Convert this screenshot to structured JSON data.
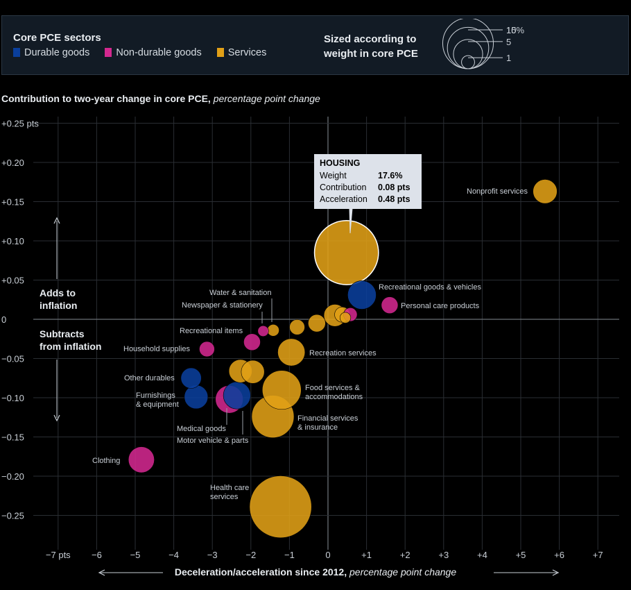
{
  "legend": {
    "title": "Core PCE sectors",
    "items": [
      {
        "label": "Durable goods",
        "color": "#0a3f9c"
      },
      {
        "label": "Non-durable goods",
        "color": "#d3288f"
      },
      {
        "label": "Services",
        "color": "#e1a017"
      }
    ],
    "size_title": "Sized according to weight in core PCE",
    "size_keys": [
      {
        "label": "15%",
        "weight": 15
      },
      {
        "label": "10",
        "weight": 10
      },
      {
        "label": "5",
        "weight": 5
      },
      {
        "label": "1",
        "weight": 1
      }
    ]
  },
  "subtitle": {
    "main": "Contribution to two-year change in core PCE,",
    "italic": " percentage point change"
  },
  "xlabel": {
    "main": "Deceleration/acceleration since 2012,",
    "italic": " percentage point change"
  },
  "annotations": {
    "adds": [
      "Adds to",
      "inflation"
    ],
    "subtracts": [
      "Subtracts",
      "from inflation"
    ]
  },
  "tooltip": {
    "title": "HOUSING",
    "rows": [
      {
        "k": "Weight",
        "v": "17.6%"
      },
      {
        "k": "Contribution",
        "v": "0.08 pts"
      },
      {
        "k": "Acceleration",
        "v": "0.48 pts"
      }
    ]
  },
  "chart_data": {
    "type": "scatter",
    "title": "Contribution to two-year change in core PCE, percentage point change",
    "xlabel": "Deceleration/acceleration since 2012, percentage point change",
    "ylabel": "Contribution to two-year change in core PCE",
    "xlim": [
      -7.5,
      7.5
    ],
    "ylim": [
      -0.28,
      0.26
    ],
    "x_ticks": [
      -7,
      -6,
      -5,
      -4,
      -3,
      -2,
      -1,
      0,
      1,
      2,
      3,
      4,
      5,
      6,
      7
    ],
    "x_tick_labels": [
      "−7 pts",
      "−6",
      "−5",
      "−4",
      "−3",
      "−2",
      "−1",
      "0",
      "+1",
      "+2",
      "+3",
      "+4",
      "+5",
      "+6",
      "+7"
    ],
    "y_ticks": [
      0.25,
      0.2,
      0.15,
      0.1,
      0.05,
      0,
      -0.05,
      -0.1,
      -0.15,
      -0.2,
      -0.25
    ],
    "y_tick_labels": [
      "+0.25 pts",
      "+0.20",
      "+0.15",
      "+0.10",
      "+0.05",
      "0",
      "−0.05",
      "−0.10",
      "−0.15",
      "−0.20",
      "−0.25"
    ],
    "grid": true,
    "colors": {
      "durable": "#0a3f9c",
      "nondurable": "#d3288f",
      "services": "#e1a017"
    },
    "points": [
      {
        "name": "Housing",
        "label": "",
        "sector": "services",
        "x": 0.48,
        "y": 0.085,
        "weight": 17.6,
        "highlight": true
      },
      {
        "name": "Nonprofit services",
        "label": "Nonprofit services",
        "sector": "services",
        "x": 5.63,
        "y": 0.163,
        "weight": 2.5
      },
      {
        "name": "Recreational goods & vehicles",
        "label": "Recreational goods & vehicles",
        "sector": "durable",
        "x": 0.88,
        "y": 0.031,
        "weight": 3.5
      },
      {
        "name": "Personal care products",
        "label": "Personal care products",
        "sector": "nondurable",
        "x": 1.6,
        "y": 0.018,
        "weight": 1.2
      },
      {
        "name": "Water & sanitation",
        "label": "Water & sanitation",
        "sector": "services",
        "x": -1.42,
        "y": -0.014,
        "weight": 0.6
      },
      {
        "name": "Newspaper & stationery",
        "label": "Newspaper & stationery",
        "sector": "nondurable",
        "x": -1.68,
        "y": -0.015,
        "weight": 0.5
      },
      {
        "name": "Recreational items",
        "label": "Recreational items",
        "sector": "nondurable",
        "x": -1.97,
        "y": -0.029,
        "weight": 1.2
      },
      {
        "name": "Household supplies",
        "label": "Household supplies",
        "sector": "nondurable",
        "x": -3.14,
        "y": -0.038,
        "weight": 1.0
      },
      {
        "name": "Recreation services",
        "label": "Recreation services",
        "sector": "services",
        "x": -0.95,
        "y": -0.042,
        "weight": 3.2
      },
      {
        "name": "Other durables",
        "label": "Other durables",
        "sector": "durable",
        "x": -3.55,
        "y": -0.075,
        "weight": 1.8
      },
      {
        "name": "Furnishings & equipment",
        "label": "Furnishings\n& equipment",
        "sector": "durable",
        "x": -3.42,
        "y": -0.099,
        "weight": 2.4
      },
      {
        "name": "Medical goods",
        "label": "Medical goods",
        "sector": "nondurable",
        "x": -2.56,
        "y": -0.102,
        "weight": 3.3
      },
      {
        "name": "Motor vehicle & parts",
        "label": "Motor vehicle & parts",
        "sector": "durable",
        "x": -2.36,
        "y": -0.097,
        "weight": 3.2
      },
      {
        "name": "Food services & accommodations",
        "label": "Food services &\naccommodations",
        "sector": "services",
        "x": -1.2,
        "y": -0.09,
        "weight": 6.5
      },
      {
        "name": "Financial services & insurance",
        "label": "Financial services\n& insurance",
        "sector": "services",
        "x": -1.43,
        "y": -0.124,
        "weight": 7.7
      },
      {
        "name": "Clothing",
        "label": "Clothing",
        "sector": "nondurable",
        "x": -4.84,
        "y": -0.179,
        "weight": 2.9
      },
      {
        "name": "Health care services",
        "label": "Health care\nservices",
        "sector": "services",
        "x": -1.23,
        "y": -0.239,
        "weight": 16.5
      },
      {
        "name": "Services (a)",
        "label": "",
        "sector": "services",
        "x": -2.27,
        "y": -0.066,
        "weight": 2.3
      },
      {
        "name": "Services (b)",
        "label": "",
        "sector": "services",
        "x": -1.95,
        "y": -0.067,
        "weight": 2.3
      },
      {
        "name": "Services (c)",
        "label": "",
        "sector": "services",
        "x": -0.8,
        "y": -0.01,
        "weight": 1.0
      },
      {
        "name": "Services (d)",
        "label": "",
        "sector": "services",
        "x": -0.29,
        "y": -0.005,
        "weight": 1.3
      },
      {
        "name": "Services (e)",
        "label": "",
        "sector": "services",
        "x": 0.18,
        "y": 0.005,
        "weight": 2.1
      },
      {
        "name": "Services (f)",
        "label": "",
        "sector": "services",
        "x": 0.37,
        "y": 0.006,
        "weight": 1.0
      },
      {
        "name": "Non-durable (a)",
        "label": "",
        "sector": "nondurable",
        "x": 0.58,
        "y": 0.006,
        "weight": 0.8
      },
      {
        "name": "Services (g)",
        "label": "",
        "sector": "services",
        "x": 0.45,
        "y": 0.002,
        "weight": 0.5
      }
    ]
  }
}
